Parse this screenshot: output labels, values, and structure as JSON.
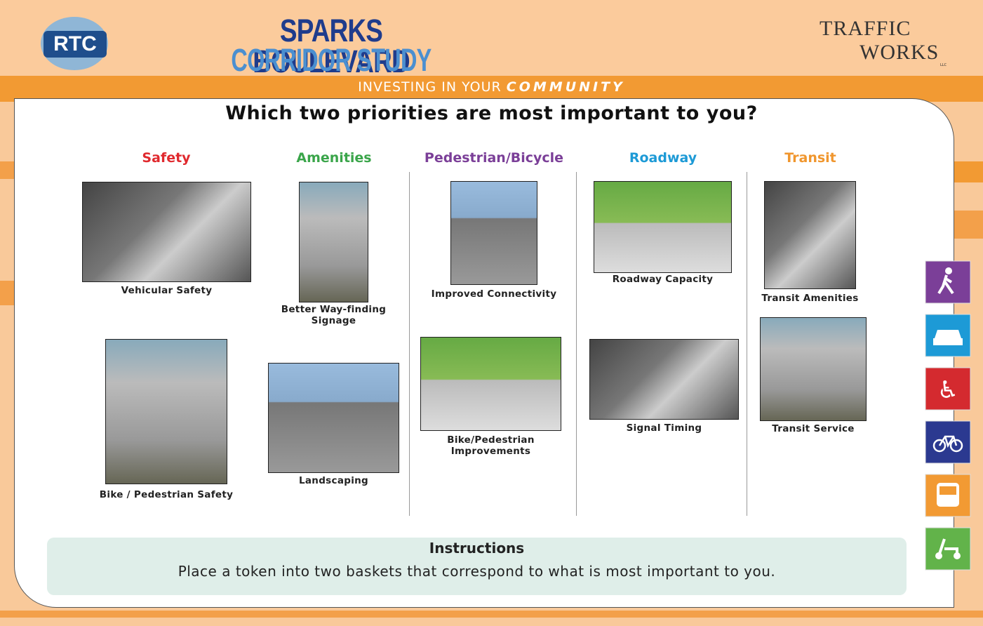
{
  "header": {
    "logo": "RTC",
    "title_line1": "SPARKS BOULEVARD",
    "title_line2": "CORRIDOR STUDY",
    "tagline": "INVESTING IN YOUR",
    "tagline_emphasis": "COMMUNITY",
    "partner_logo_line1": "TRAFFIC",
    "partner_logo_line2": "WORKS",
    "partner_logo_suffix": "LLC"
  },
  "question": "Which two priorities are most important to you?",
  "columns": [
    {
      "heading": "Safety",
      "color": "#e0292e",
      "items": [
        {
          "caption": [
            "Vehicular Safety"
          ]
        },
        {
          "caption": [
            "Bike / Pedestrian Safety"
          ]
        }
      ]
    },
    {
      "heading": "Amenities",
      "color": "#3aa54a",
      "items": [
        {
          "caption": [
            "Better Way-finding",
            "Signage"
          ]
        },
        {
          "caption": [
            "Landscaping"
          ]
        }
      ]
    },
    {
      "heading": "Pedestrian/Bicycle",
      "color": "#7b3f98",
      "items": [
        {
          "caption": [
            "Improved Connectivity"
          ]
        },
        {
          "caption": [
            "Bike/Pedestrian",
            "Improvements"
          ]
        }
      ]
    },
    {
      "heading": "Roadway",
      "color": "#1d9ad6",
      "items": [
        {
          "caption": [
            "Roadway Capacity"
          ]
        },
        {
          "caption": [
            "Signal Timing"
          ]
        }
      ]
    },
    {
      "heading": "Transit",
      "color": "#f0962e",
      "items": [
        {
          "caption": [
            "Transit Amenities"
          ]
        },
        {
          "caption": [
            "Transit Service"
          ]
        }
      ]
    }
  ],
  "instructions": {
    "title": "Instructions",
    "text": "Place a token into two baskets that correspond to what is most important to you."
  }
}
